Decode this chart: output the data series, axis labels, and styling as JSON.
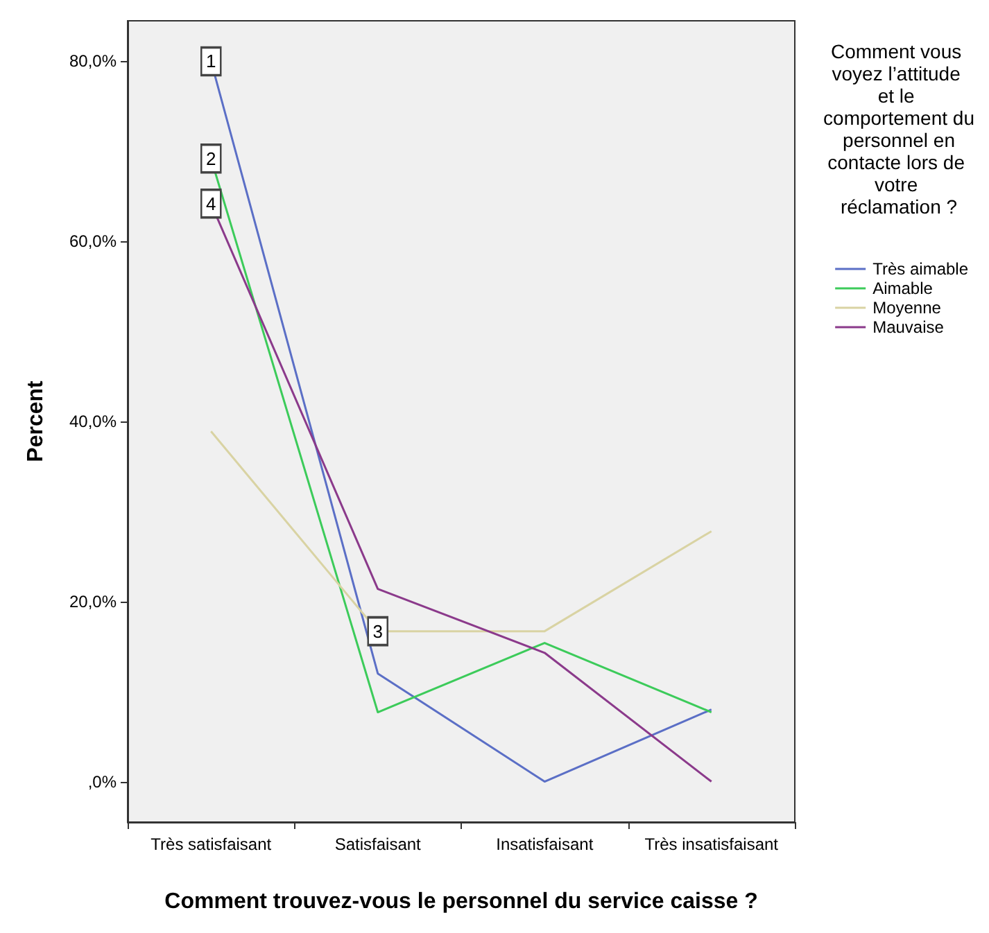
{
  "chart_data": {
    "type": "line",
    "xlabel": "Comment trouvez-vous le personnel du service caisse ?",
    "ylabel": "Percent",
    "legend_title": "Comment vous voyez l’attitude et le comportement du personnel en contacte lors de votre réclamation ?",
    "categories": [
      "Très satisfaisant",
      "Satisfaisant",
      "Insatisfaisant",
      "Très insatisfaisant"
    ],
    "series": [
      {
        "name": "Très aimable",
        "color": "#5b6fc6",
        "values": [
          80.0,
          12.0,
          0.0,
          8.0
        ]
      },
      {
        "name": "Aimable",
        "color": "#3ccb5a",
        "values": [
          69.2,
          7.7,
          15.4,
          7.7
        ]
      },
      {
        "name": "Moyenne",
        "color": "#d9d3a3",
        "values": [
          38.9,
          16.7,
          16.7,
          27.8
        ]
      },
      {
        "name": "Mauvaise",
        "color": "#8b3a8b",
        "values": [
          64.2,
          21.4,
          14.3,
          0.0
        ]
      }
    ],
    "ylim": [
      -4.5,
      84.5
    ],
    "yticks": [
      {
        "value": 0,
        "label": ",0%"
      },
      {
        "value": 20,
        "label": "20,0%"
      },
      {
        "value": 40,
        "label": "40,0%"
      },
      {
        "value": 60,
        "label": "60,0%"
      },
      {
        "value": 80,
        "label": "80,0%"
      }
    ],
    "annotations": [
      {
        "text": "1",
        "x": "Très satisfaisant",
        "y": 80.0
      },
      {
        "text": "2",
        "x": "Très satisfaisant",
        "y": 69.2
      },
      {
        "text": "3",
        "x": "Satisfaisant",
        "y": 16.7
      },
      {
        "text": "4",
        "x": "Très satisfaisant",
        "y": 64.2
      }
    ],
    "grid": false,
    "legend": "right",
    "marker": "none",
    "line_style": "solid"
  }
}
